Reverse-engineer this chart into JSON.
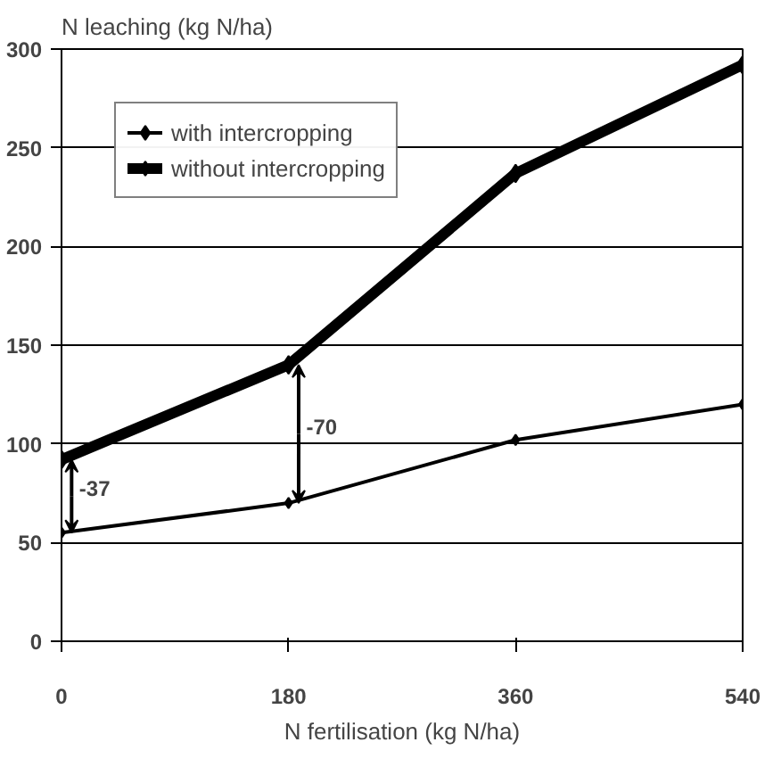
{
  "chart_data": {
    "type": "line",
    "xlabel": "N fertilisation (kg N/ha)",
    "ylabel": "N leaching (kg N/ha)",
    "x": [
      0,
      180,
      360,
      540
    ],
    "xlim": [
      0,
      540
    ],
    "xticks": [
      0,
      180,
      360,
      540
    ],
    "ylim": [
      0,
      300
    ],
    "yticks": [
      0,
      50,
      100,
      150,
      200,
      250,
      300
    ],
    "series": [
      {
        "name": "with intercropping",
        "color": "#000000",
        "values": [
          55,
          70,
          102,
          120
        ]
      },
      {
        "name": "without intercropping",
        "color": "#000000",
        "values": [
          92,
          140,
          237,
          292
        ]
      }
    ],
    "annotations": [
      {
        "text": "-37",
        "x": 0,
        "y": 92
      },
      {
        "text": "-70",
        "x": 180,
        "y": 140
      }
    ],
    "grid": "y",
    "legend": "top left",
    "marker": "diamond",
    "line_style": "solid"
  }
}
